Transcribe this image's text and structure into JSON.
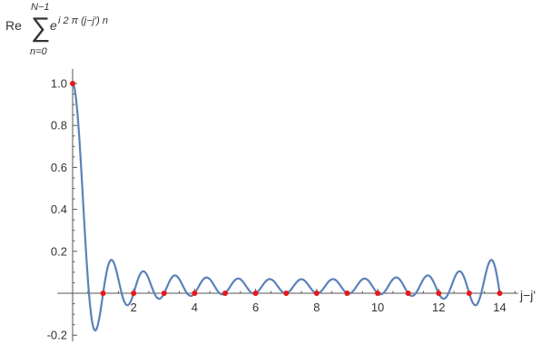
{
  "formula": {
    "re": "Re",
    "sigma": "∑",
    "upper": "N−1",
    "lower": "n=0",
    "base": "e",
    "exponent": "i 2 π (j−j′) n"
  },
  "chart_data": {
    "type": "line",
    "xlabel": "j−j'",
    "ylabel": "",
    "xlim": [
      -0.5,
      14.6
    ],
    "ylim": [
      -0.23,
      1.07
    ],
    "x_ticks": [
      2,
      4,
      6,
      8,
      10,
      12,
      14
    ],
    "y_ticks": [
      -0.2,
      0.2,
      0.4,
      0.6,
      0.8,
      1.0
    ],
    "x_tick_labels": [
      "2",
      "4",
      "6",
      "8",
      "10",
      "12",
      "14"
    ],
    "y_tick_labels": [
      "-0.2",
      "0.2",
      "0.4",
      "0.6",
      "0.8",
      "1.0"
    ],
    "grid": false,
    "N": 15,
    "series": [
      {
        "curve": "sin(pi*N*x)/(N*sin(pi*x/N)) * cos(pi*(N-1)*x/N)",
        "x_range": [
          0,
          14
        ],
        "color": "#5b82b8"
      }
    ],
    "points": {
      "x": [
        0,
        1,
        2,
        3,
        4,
        5,
        6,
        7,
        8,
        9,
        10,
        11,
        12,
        13,
        14
      ],
      "y": [
        1,
        0,
        0,
        0,
        0,
        0,
        0,
        0,
        0,
        0,
        0,
        0,
        0,
        0,
        0
      ],
      "color": "#e8181c"
    }
  }
}
